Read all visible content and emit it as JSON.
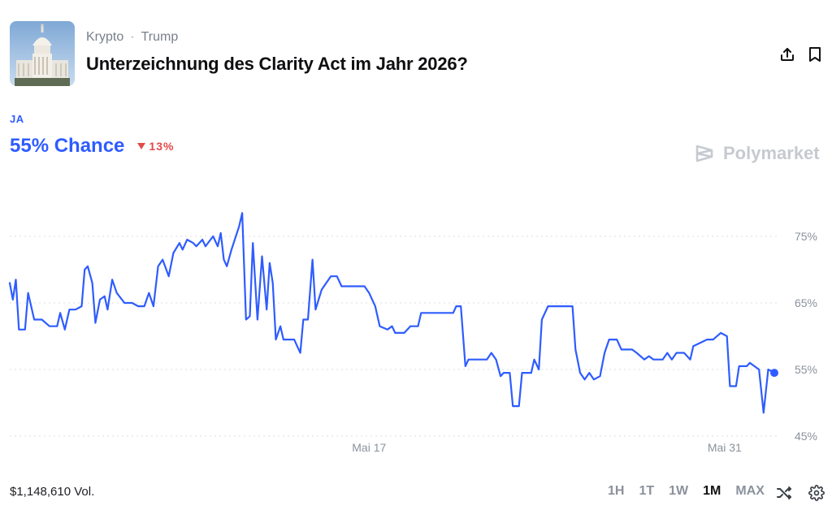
{
  "header": {
    "breadcrumb": [
      "Krypto",
      "Trump"
    ],
    "separator": "·",
    "title": "Unterzeichnung des Clarity Act im Jahr 2026?"
  },
  "outcome": {
    "label": "JA",
    "chance": "55% Chance",
    "delta": "13%",
    "delta_direction": "down"
  },
  "brand": "Polymarket",
  "footer": {
    "volume": "$1,148,610 Vol.",
    "timeframes": [
      "1H",
      "1T",
      "1W",
      "1M",
      "MAX"
    ],
    "active_timeframe": "1M"
  },
  "colors": {
    "accent": "#2e5cff",
    "negative": "#e14a4a"
  },
  "chart_data": {
    "type": "line",
    "title": "",
    "ylim": [
      45,
      80
    ],
    "xlim": [
      0,
      100
    ],
    "yticks": [
      45,
      55,
      65,
      75
    ],
    "ytick_labels": [
      "45%",
      "55%",
      "65%",
      "75%"
    ],
    "xticks": [
      {
        "x": 47,
        "label": "Mai 17"
      },
      {
        "x": 93.5,
        "label": "Mai 31"
      }
    ],
    "grid": true,
    "series": [
      {
        "values": [
          [
            0,
            68
          ],
          [
            0.4,
            65.5
          ],
          [
            0.8,
            68.5
          ],
          [
            1.2,
            61
          ],
          [
            2,
            61
          ],
          [
            2.4,
            66.5
          ],
          [
            3.2,
            62.5
          ],
          [
            4.2,
            62.5
          ],
          [
            5.2,
            61.5
          ],
          [
            6.2,
            61.5
          ],
          [
            6.6,
            63.5
          ],
          [
            7.2,
            61
          ],
          [
            7.8,
            64
          ],
          [
            8.6,
            64
          ],
          [
            9.4,
            64.5
          ],
          [
            9.8,
            70
          ],
          [
            10.2,
            70.5
          ],
          [
            10.8,
            68
          ],
          [
            11.2,
            62
          ],
          [
            11.8,
            65.5
          ],
          [
            12.4,
            66
          ],
          [
            12.8,
            64
          ],
          [
            13.4,
            68.5
          ],
          [
            14,
            66.5
          ],
          [
            15,
            65
          ],
          [
            16,
            65
          ],
          [
            16.8,
            64.5
          ],
          [
            17.6,
            64.5
          ],
          [
            18.2,
            66.5
          ],
          [
            18.8,
            64.5
          ],
          [
            19.4,
            70.5
          ],
          [
            20,
            71.5
          ],
          [
            20.8,
            69
          ],
          [
            21.4,
            72.5
          ],
          [
            22.2,
            74
          ],
          [
            22.6,
            73
          ],
          [
            23.2,
            74.5
          ],
          [
            24,
            74
          ],
          [
            24.4,
            73.5
          ],
          [
            25.2,
            74.5
          ],
          [
            25.6,
            73.5
          ],
          [
            26.6,
            75
          ],
          [
            27.2,
            73.5
          ],
          [
            27.6,
            75.5
          ],
          [
            28,
            71.5
          ],
          [
            28.4,
            70.5
          ],
          [
            29,
            73
          ],
          [
            30,
            76.5
          ],
          [
            30.4,
            78.5
          ],
          [
            30.9,
            62.5
          ],
          [
            31.4,
            63
          ],
          [
            31.8,
            74
          ],
          [
            32.4,
            62.5
          ],
          [
            33,
            72
          ],
          [
            33.6,
            64
          ],
          [
            34,
            71
          ],
          [
            34.4,
            68
          ],
          [
            34.8,
            59.5
          ],
          [
            35.4,
            61.5
          ],
          [
            35.8,
            59.5
          ],
          [
            37.2,
            59.5
          ],
          [
            37.6,
            58.5
          ],
          [
            38,
            57.5
          ],
          [
            38.4,
            62.5
          ],
          [
            39,
            62.5
          ],
          [
            39.6,
            71.5
          ],
          [
            40,
            64
          ],
          [
            40.8,
            67
          ],
          [
            42,
            69
          ],
          [
            42.8,
            69
          ],
          [
            43.4,
            67.5
          ],
          [
            44.4,
            67.5
          ],
          [
            45.6,
            67.5
          ],
          [
            46.4,
            67.5
          ],
          [
            47,
            66.5
          ],
          [
            47.8,
            64.5
          ],
          [
            48.4,
            61.5
          ],
          [
            49.4,
            61
          ],
          [
            50,
            61.5
          ],
          [
            50.4,
            60.5
          ],
          [
            51.6,
            60.5
          ],
          [
            52.4,
            61.5
          ],
          [
            53.4,
            61.5
          ],
          [
            53.8,
            63.5
          ],
          [
            56,
            63.5
          ],
          [
            58,
            63.5
          ],
          [
            58.4,
            64.5
          ],
          [
            59,
            64.5
          ],
          [
            59.6,
            55.5
          ],
          [
            60,
            56.5
          ],
          [
            62.4,
            56.5
          ],
          [
            63,
            57.5
          ],
          [
            63.6,
            56.5
          ],
          [
            64.2,
            54
          ],
          [
            64.6,
            54.5
          ],
          [
            65.4,
            54.5
          ],
          [
            65.8,
            49.5
          ],
          [
            66.6,
            49.5
          ],
          [
            67,
            54.5
          ],
          [
            68.2,
            54.5
          ],
          [
            68.6,
            56.5
          ],
          [
            69.2,
            55
          ],
          [
            69.6,
            62.5
          ],
          [
            70.4,
            64.5
          ],
          [
            72,
            64.5
          ],
          [
            73.6,
            64.5
          ],
          [
            74,
            58
          ],
          [
            74.6,
            54.5
          ],
          [
            75.2,
            53.5
          ],
          [
            75.8,
            54.5
          ],
          [
            76.4,
            53.5
          ],
          [
            77.2,
            54
          ],
          [
            77.8,
            57.5
          ],
          [
            78.4,
            59.5
          ],
          [
            79.4,
            59.5
          ],
          [
            80,
            58
          ],
          [
            81.4,
            58
          ],
          [
            82,
            57.5
          ],
          [
            83,
            56.5
          ],
          [
            83.6,
            57
          ],
          [
            84.2,
            56.5
          ],
          [
            85.4,
            56.5
          ],
          [
            86,
            57.5
          ],
          [
            86.6,
            56.5
          ],
          [
            87.2,
            57.5
          ],
          [
            88.2,
            57.5
          ],
          [
            89,
            56.5
          ],
          [
            89.4,
            58.5
          ],
          [
            91.2,
            59.5
          ],
          [
            92,
            59.5
          ],
          [
            93,
            60.5
          ],
          [
            93.8,
            60
          ],
          [
            94.2,
            52.5
          ],
          [
            95,
            52.5
          ],
          [
            95.4,
            55.5
          ],
          [
            96.4,
            55.5
          ],
          [
            96.8,
            56
          ],
          [
            97.4,
            55.5
          ],
          [
            98,
            55
          ],
          [
            98.6,
            48.5
          ],
          [
            99.2,
            55
          ],
          [
            100,
            54.5
          ]
        ]
      }
    ],
    "end_value": 54.5
  }
}
